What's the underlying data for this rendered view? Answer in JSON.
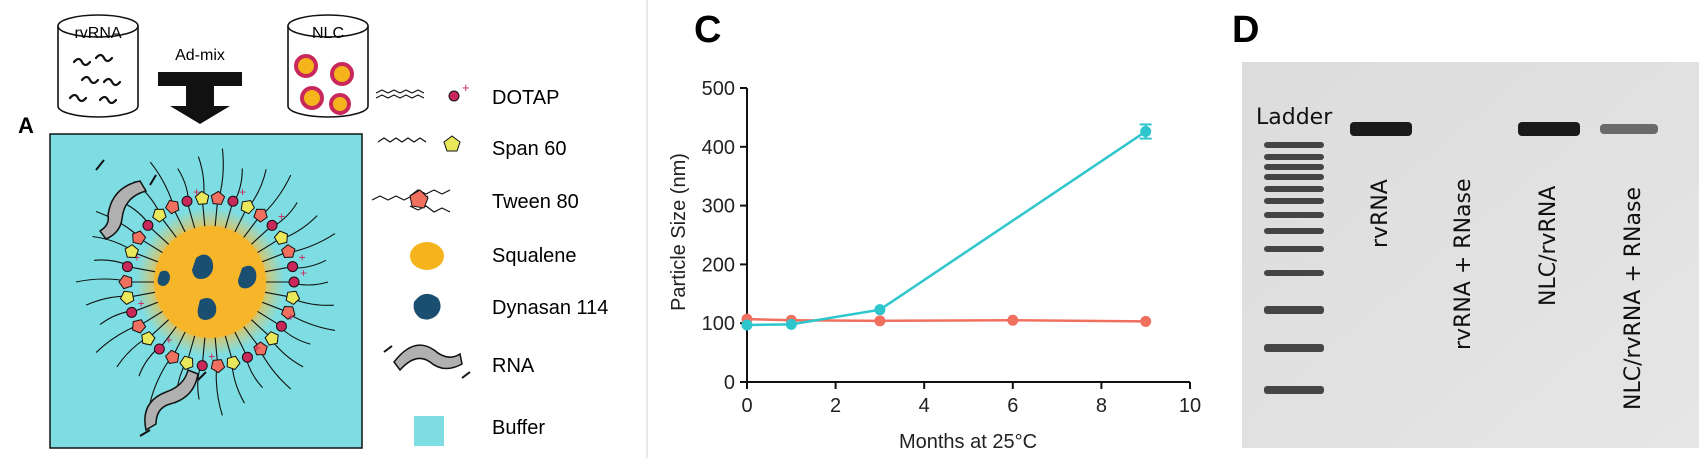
{
  "panel_a": {
    "letter": "A",
    "rvrna_label": "rvRNA",
    "admix_label": "Ad-mix",
    "nlc_label": "NLC",
    "legend": [
      {
        "label": "DOTAP",
        "icon": "dotap-icon"
      },
      {
        "label": "Span 60",
        "icon": "span60-icon"
      },
      {
        "label": "Tween 80",
        "icon": "tween80-icon"
      },
      {
        "label": "Squalene",
        "icon": "squalene-icon"
      },
      {
        "label": "Dynasan 114",
        "icon": "dynasan-icon"
      },
      {
        "label": "RNA",
        "icon": "rna-icon"
      },
      {
        "label": "Buffer",
        "icon": "buffer-icon"
      }
    ],
    "colors": {
      "buffer": "#7ddde2",
      "squalene": "#f5b31c",
      "dotap": "#c8285a",
      "span60": "#e8e85a",
      "tween80": "#f07060",
      "dynasan": "#1b4f72",
      "nlc_ring": "#c8285a"
    }
  },
  "panel_c": {
    "letter": "C",
    "chart_data": {
      "type": "line",
      "xlabel": "Months at 25°C",
      "ylabel": "Particle Size (nm)",
      "xlim": [
        0,
        10
      ],
      "ylim": [
        0,
        500
      ],
      "xticks": [
        0,
        2,
        4,
        6,
        8,
        10
      ],
      "yticks": [
        0,
        100,
        200,
        300,
        400,
        500
      ],
      "series": [
        {
          "color": "#f07060",
          "x": [
            0,
            1,
            3,
            6,
            9
          ],
          "y": [
            107,
            105,
            104,
            105,
            103
          ]
        },
        {
          "color": "#2cc6cc",
          "x": [
            0,
            1,
            3,
            9
          ],
          "y": [
            97,
            98,
            123,
            426
          ],
          "error": [
            0,
            0,
            0,
            12
          ]
        }
      ],
      "grid": false
    }
  },
  "panel_d": {
    "letter": "D",
    "ladder_label": "Ladder",
    "lanes": [
      "rvRNA",
      "rvRNA + RNase",
      "NLC/rvRNA",
      "NLC/rvRNA + RNase"
    ]
  }
}
